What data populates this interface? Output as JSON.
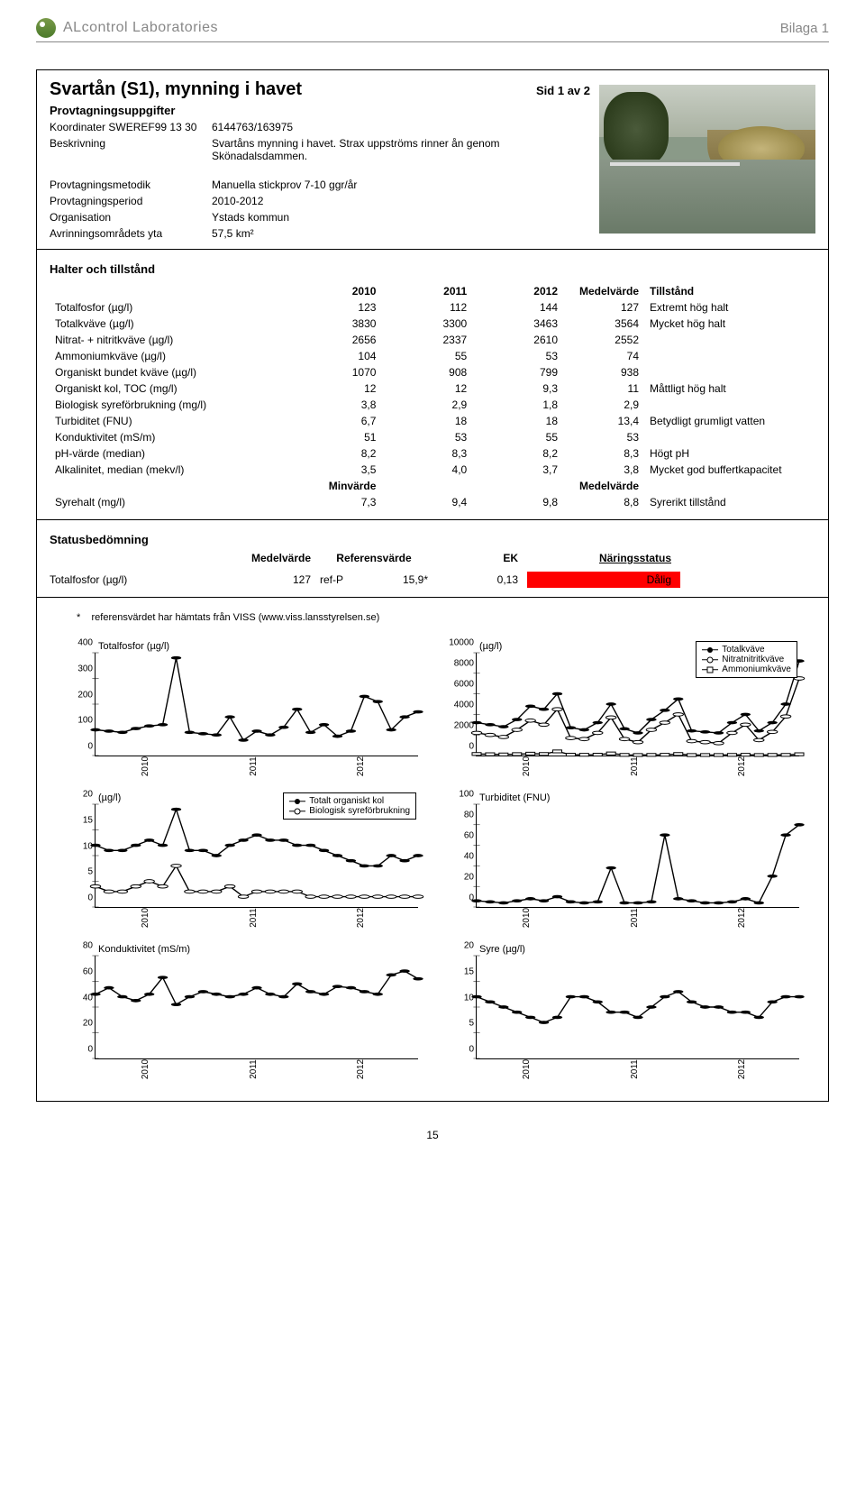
{
  "header": {
    "brand": "ALcontrol Laboratories",
    "bilaga": "Bilaga 1"
  },
  "page": {
    "title": "Svartån (S1), mynning i havet",
    "sid": "Sid 1 av 2",
    "section_provtag": "Provtagningsuppgifter",
    "koordinater_label": "Koordinater SWEREF99 13 30",
    "koordinater_val": "6144763/163975",
    "beskrivning_label": "Beskrivning",
    "beskrivning_val": "Svartåns mynning i havet. Strax uppströms rinner ån genom Skönadalsdammen.",
    "metodik_label": "Provtagningsmetodik",
    "metodik_val": "Manuella stickprov 7-10 ggr/år",
    "period_label": "Provtagningsperiod",
    "period_val": "2010-2012",
    "org_label": "Organisation",
    "org_val": "Ystads kommun",
    "avrinning_label": "Avrinningsområdets yta",
    "avrinning_val": "57,5 km²"
  },
  "halter": {
    "title": "Halter och tillstånd",
    "years": [
      "2010",
      "2011",
      "2012"
    ],
    "mv_header": "Medelvärde",
    "tillstand_header": "Tillstånd",
    "rows": [
      {
        "label": "Totalfosfor (µg/l)",
        "v": [
          "123",
          "112",
          "144"
        ],
        "mv": "127",
        "st": "Extremt hög halt"
      },
      {
        "label": "Totalkväve (µg/l)",
        "v": [
          "3830",
          "3300",
          "3463"
        ],
        "mv": "3564",
        "st": "Mycket hög halt"
      },
      {
        "label": "Nitrat- + nitritkväve (µg/l)",
        "v": [
          "2656",
          "2337",
          "2610"
        ],
        "mv": "2552",
        "st": ""
      },
      {
        "label": "Ammoniumkväve (µg/l)",
        "v": [
          "104",
          "55",
          "53"
        ],
        "mv": "74",
        "st": ""
      },
      {
        "label": "Organiskt bundet kväve (µg/l)",
        "v": [
          "1070",
          "908",
          "799"
        ],
        "mv": "938",
        "st": ""
      },
      {
        "label": "Organiskt kol, TOC (mg/l)",
        "v": [
          "12",
          "12",
          "9,3"
        ],
        "mv": "11",
        "st": "Måttligt hög halt"
      },
      {
        "label": "Biologisk syreförbrukning (mg/l)",
        "v": [
          "3,8",
          "2,9",
          "1,8"
        ],
        "mv": "2,9",
        "st": ""
      },
      {
        "label": "Turbiditet (FNU)",
        "v": [
          "6,7",
          "18",
          "18"
        ],
        "mv": "13,4",
        "st": "Betydligt grumligt vatten"
      },
      {
        "label": "Konduktivitet (mS/m)",
        "v": [
          "51",
          "53",
          "55"
        ],
        "mv": "53",
        "st": ""
      },
      {
        "label": "pH-värde (median)",
        "v": [
          "8,2",
          "8,3",
          "8,2"
        ],
        "mv": "8,3",
        "st": "Högt pH"
      },
      {
        "label": "Alkalinitet, median (mekv/l)",
        "v": [
          "3,5",
          "4,0",
          "3,7"
        ],
        "mv": "3,8",
        "st": "Mycket god buffertkapacitet"
      }
    ],
    "minvarde_label": "Minvärde",
    "medelvarde_label": "Medelvärde",
    "syrehalt": {
      "label": "Syrehalt (mg/l)",
      "v": [
        "7,3",
        "9,4",
        "9,8"
      ],
      "mv": "8,8",
      "st": "Syrerikt tillstånd"
    }
  },
  "status": {
    "title": "Statusbedömning",
    "headers": [
      "Medelvärde",
      "Referensvärde",
      "EK",
      "Näringsstatus"
    ],
    "row": {
      "label": "Totalfosfor (µg/l)",
      "mv": "127",
      "ref": "ref-P",
      "refv": "15,9*",
      "ek": "0,13",
      "status": "Dålig"
    },
    "badge_color": "#ff0000"
  },
  "footnote": {
    "star": "*",
    "text": "referensvärdet har hämtats från VISS (www.viss.lansstyrelsen.se)"
  },
  "charts": [
    {
      "id": "ch1",
      "title": "Totalfosfor (µg/l)",
      "y": [
        0,
        100,
        200,
        300,
        400
      ],
      "x": [
        "2010",
        "2011",
        "2012"
      ],
      "ymin": 0,
      "ymax": 400,
      "series": [
        {
          "style": "filled",
          "points": [
            100,
            95,
            90,
            105,
            115,
            120,
            380,
            90,
            85,
            80,
            150,
            60,
            95,
            80,
            110,
            180,
            90,
            120,
            75,
            95,
            230,
            210,
            100,
            150,
            170
          ]
        }
      ]
    },
    {
      "id": "ch2",
      "title": "(µg/l)",
      "y": [
        0,
        2000,
        4000,
        6000,
        8000,
        10000
      ],
      "x": [
        "2010",
        "2011",
        "2012"
      ],
      "ymin": 0,
      "ymax": 10000,
      "legend": {
        "pos": "top-right",
        "items": [
          {
            "style": "filled",
            "label": "Totalkväve"
          },
          {
            "style": "open",
            "label": "Nitratnitritkväve"
          },
          {
            "style": "square",
            "label": "Ammoniumkväve"
          }
        ]
      },
      "series": [
        {
          "style": "filled",
          "points": [
            3200,
            3000,
            2800,
            3500,
            4800,
            4500,
            6000,
            2700,
            2500,
            3200,
            5000,
            2600,
            2200,
            3500,
            4400,
            5500,
            2400,
            2300,
            2200,
            3200,
            4000,
            2400,
            3200,
            5000,
            9200
          ]
        },
        {
          "style": "open",
          "points": [
            2200,
            2000,
            1800,
            2500,
            3400,
            3000,
            4500,
            1700,
            1600,
            2200,
            3700,
            1600,
            1300,
            2500,
            3200,
            4000,
            1400,
            1300,
            1200,
            2200,
            3000,
            1500,
            2300,
            3800,
            7500
          ]
        },
        {
          "style": "square",
          "points": [
            150,
            120,
            100,
            130,
            180,
            150,
            400,
            80,
            70,
            80,
            200,
            60,
            50,
            60,
            70,
            150,
            45,
            50,
            50,
            60,
            70,
            50,
            55,
            60,
            120
          ]
        }
      ]
    },
    {
      "id": "ch3",
      "title": "(µg/l)",
      "y": [
        0,
        5,
        10,
        15,
        20
      ],
      "x": [
        "2010",
        "2011",
        "2012"
      ],
      "ymin": 0,
      "ymax": 20,
      "legend": {
        "pos": "top-right",
        "items": [
          {
            "style": "filled",
            "label": "Totalt organiskt kol"
          },
          {
            "style": "open",
            "label": "Biologisk syreförbrukning"
          }
        ]
      },
      "series": [
        {
          "style": "filled",
          "points": [
            12,
            11,
            11,
            12,
            13,
            12,
            19,
            11,
            11,
            10,
            12,
            13,
            14,
            13,
            13,
            12,
            12,
            11,
            10,
            9,
            8,
            8,
            10,
            9,
            10
          ]
        },
        {
          "style": "open",
          "points": [
            4,
            3,
            3,
            4,
            5,
            4,
            8,
            3,
            3,
            3,
            4,
            2,
            3,
            3,
            3,
            3,
            2,
            2,
            2,
            2,
            2,
            2,
            2,
            2,
            2
          ]
        }
      ]
    },
    {
      "id": "ch4",
      "title": "Turbiditet (FNU)",
      "y": [
        0,
        20,
        40,
        60,
        80,
        100
      ],
      "x": [
        "2010",
        "2011",
        "2012"
      ],
      "ymin": 0,
      "ymax": 100,
      "series": [
        {
          "style": "filled",
          "points": [
            6,
            5,
            4,
            6,
            8,
            6,
            10,
            5,
            4,
            5,
            38,
            4,
            4,
            5,
            70,
            8,
            6,
            4,
            4,
            5,
            8,
            4,
            30,
            70,
            80
          ]
        }
      ]
    },
    {
      "id": "ch5",
      "title": "Konduktivitet (mS/m)",
      "y": [
        0,
        20,
        40,
        60,
        80
      ],
      "x": [
        "2010",
        "2011",
        "2012"
      ],
      "ymin": 0,
      "ymax": 80,
      "series": [
        {
          "style": "filled",
          "points": [
            50,
            55,
            48,
            45,
            50,
            63,
            42,
            48,
            52,
            50,
            48,
            50,
            55,
            50,
            48,
            58,
            52,
            50,
            56,
            55,
            52,
            50,
            65,
            68,
            62
          ]
        }
      ]
    },
    {
      "id": "ch6",
      "title": "Syre (µg/l)",
      "y": [
        0,
        5,
        10,
        15,
        20
      ],
      "x": [
        "2010",
        "2011",
        "2012"
      ],
      "ymin": 0,
      "ymax": 20,
      "series": [
        {
          "style": "filled",
          "points": [
            12,
            11,
            10,
            9,
            8,
            7,
            8,
            12,
            12,
            11,
            9,
            9,
            8,
            10,
            12,
            13,
            11,
            10,
            10,
            9,
            9,
            8,
            11,
            12,
            12
          ]
        }
      ]
    }
  ],
  "pagenum": "15",
  "colors": {
    "line": "#000000",
    "axis": "#000000",
    "fill_marker": "#000000",
    "open_marker_fill": "#ffffff"
  }
}
